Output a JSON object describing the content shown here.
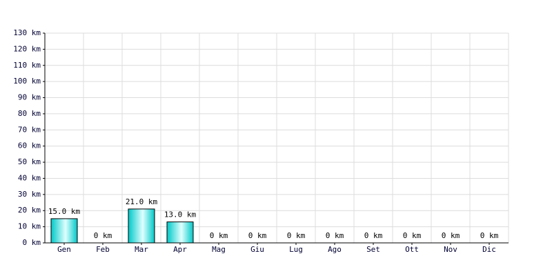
{
  "chart_data": {
    "type": "bar",
    "categories": [
      "Gen",
      "Feb",
      "Mar",
      "Apr",
      "Mag",
      "Giu",
      "Lug",
      "Ago",
      "Set",
      "Ott",
      "Nov",
      "Dic"
    ],
    "values": [
      15,
      0,
      21,
      13,
      0,
      0,
      0,
      0,
      0,
      0,
      0,
      0
    ],
    "value_labels": [
      "15.0 km",
      "0 km",
      "21.0 km",
      "13.0 km",
      "0 km",
      "0 km",
      "0 km",
      "0 km",
      "0 km",
      "0 km",
      "0 km",
      "0 km"
    ],
    "color": "#00c8c8",
    "ylim": [
      0,
      130
    ],
    "yticks": [
      {
        "value": 0,
        "label": "0 km"
      },
      {
        "value": 10,
        "label": "10 km"
      },
      {
        "value": 20,
        "label": "20 km"
      },
      {
        "value": 30,
        "label": "30 km"
      },
      {
        "value": 40,
        "label": "40 km"
      },
      {
        "value": 50,
        "label": "50 km"
      },
      {
        "value": 60,
        "label": "60 km"
      },
      {
        "value": 70,
        "label": "70 km"
      },
      {
        "value": 80,
        "label": "80 km"
      },
      {
        "value": 90,
        "label": "90 km"
      },
      {
        "value": 100,
        "label": "100 km"
      },
      {
        "value": 110,
        "label": "110 km"
      },
      {
        "value": 120,
        "label": "120 km"
      },
      {
        "value": 130,
        "label": "130 km"
      }
    ],
    "grid": true
  }
}
